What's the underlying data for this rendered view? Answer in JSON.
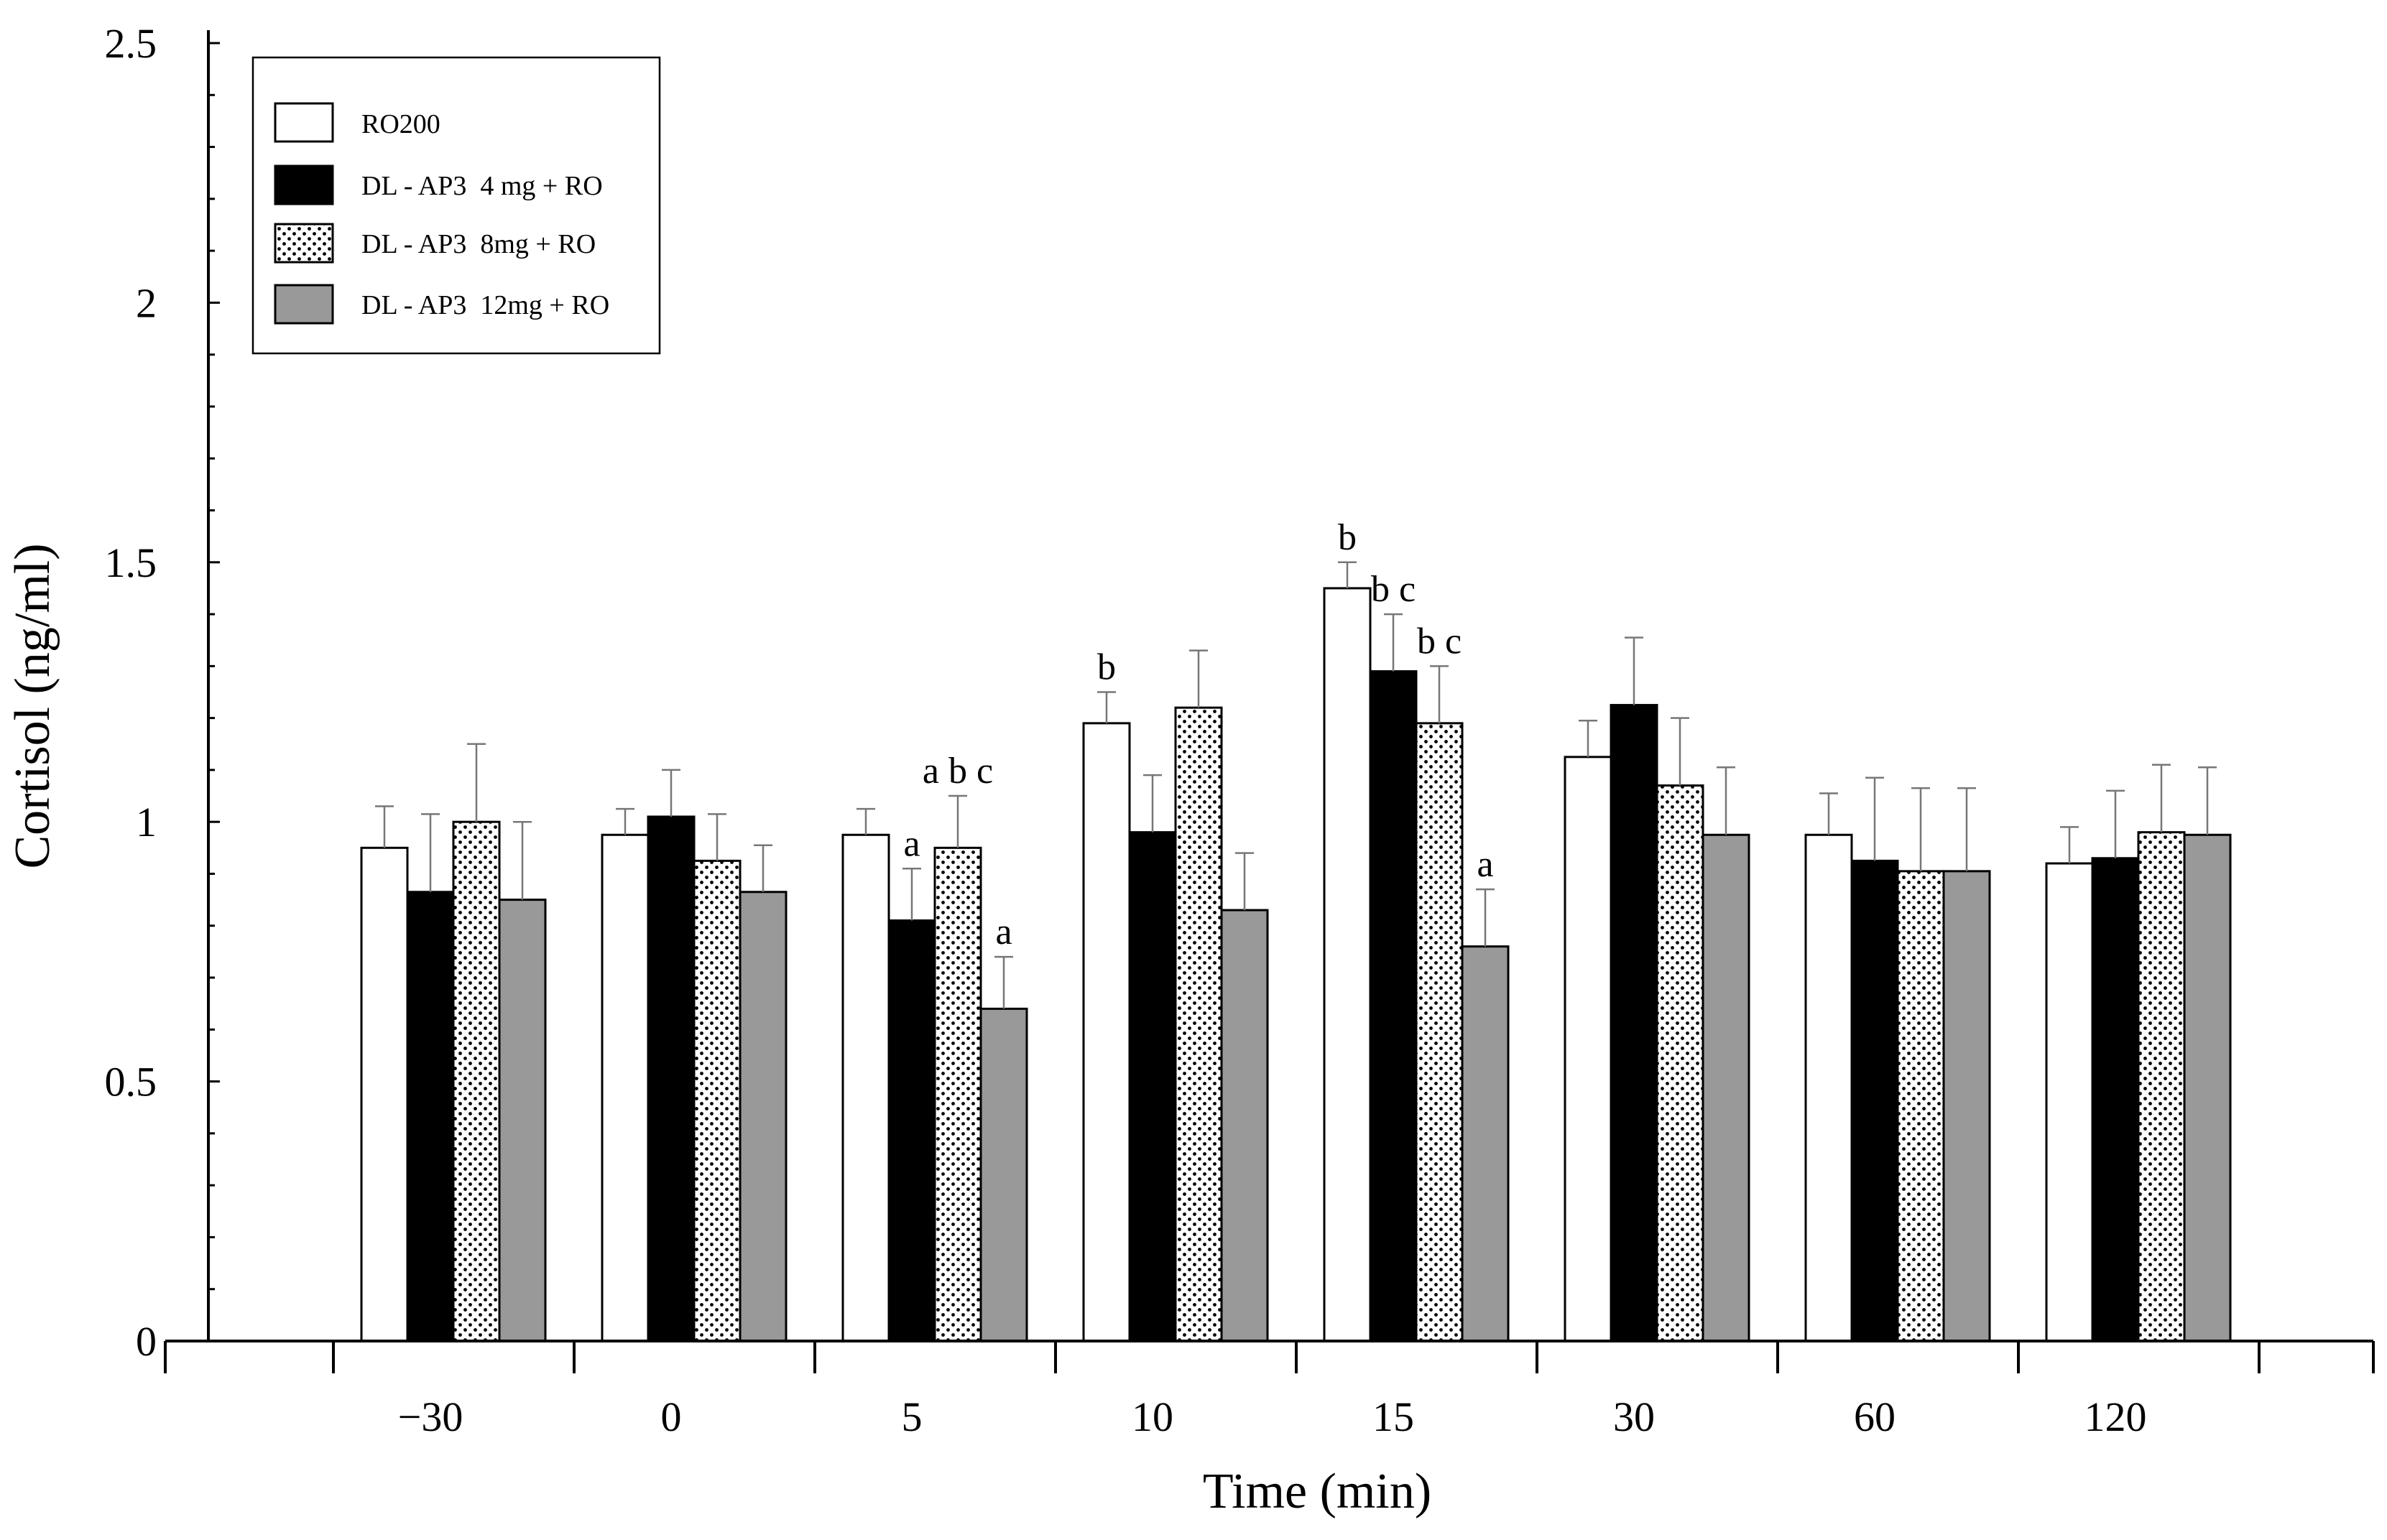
{
  "chart_data": {
    "type": "bar",
    "xlabel": "Time (min)",
    "ylabel": "Cortisol (ng/ml)",
    "ylim": [
      0,
      2.5
    ],
    "yticks": [
      "0",
      "0.5",
      "1",
      "1.5",
      "2",
      "2.5"
    ],
    "ytick_values": [
      0,
      0.5,
      1,
      1.5,
      2,
      2.5
    ],
    "categories": [
      "−30",
      "0",
      "5",
      "10",
      "15",
      "30",
      "60",
      "120"
    ],
    "legend_position": "top-left",
    "series": [
      {
        "name": "RO200",
        "fill": "#ffffff",
        "pattern": "white",
        "values": [
          0.95,
          0.975,
          0.975,
          1.19,
          1.45,
          1.125,
          0.975,
          0.92
        ],
        "errors": [
          0.08,
          0.05,
          0.05,
          0.06,
          0.05,
          0.07,
          0.08,
          0.07
        ]
      },
      {
        "name": "DL - AP3  4 mg + RO",
        "fill": "#000000",
        "pattern": "black",
        "values": [
          0.865,
          1.01,
          0.81,
          0.98,
          1.29,
          1.225,
          0.925,
          0.93
        ],
        "errors": [
          0.15,
          0.09,
          0.1,
          0.11,
          0.11,
          0.13,
          0.16,
          0.13
        ]
      },
      {
        "name": "DL - AP3  8mg + RO",
        "fill": "#ffffff",
        "pattern": "dots",
        "values": [
          1.0,
          0.925,
          0.95,
          1.22,
          1.19,
          1.07,
          0.905,
          0.98
        ],
        "errors": [
          0.15,
          0.09,
          0.1,
          0.11,
          0.11,
          0.13,
          0.16,
          0.13
        ]
      },
      {
        "name": "DL - AP3  12mg + RO",
        "fill": "#999999",
        "pattern": "gray",
        "values": [
          0.85,
          0.865,
          0.64,
          0.83,
          0.76,
          0.975,
          0.905,
          0.975
        ],
        "errors": [
          0.15,
          0.09,
          0.1,
          0.11,
          0.11,
          0.13,
          0.16,
          0.13
        ]
      }
    ],
    "annotations": [
      {
        "text": "a b c",
        "category": 2,
        "series": 2
      },
      {
        "text": "a",
        "category": 2,
        "series": 1
      },
      {
        "text": "a",
        "category": 2,
        "series": 3
      },
      {
        "text": "b",
        "category": 3,
        "series": 0
      },
      {
        "text": "b",
        "category": 4,
        "series": 0
      },
      {
        "text": "b c",
        "category": 4,
        "series": 1
      },
      {
        "text": "b c",
        "category": 4,
        "series": 2
      },
      {
        "text": "a",
        "category": 4,
        "series": 3
      }
    ]
  }
}
